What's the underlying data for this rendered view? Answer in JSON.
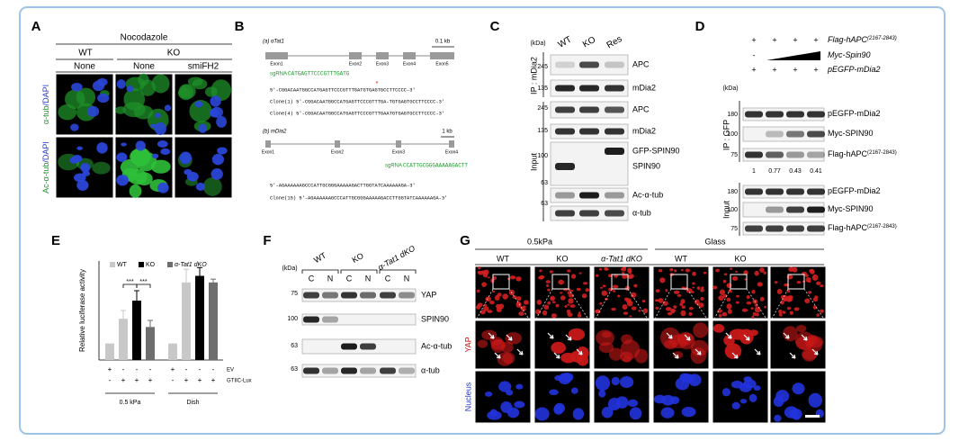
{
  "figure": {
    "A": {
      "letter": "A",
      "treatment": "Nocodazole",
      "genotypes": [
        "WT",
        "KO"
      ],
      "conditions": [
        "None",
        "None",
        "smiFH2"
      ],
      "rows": [
        [
          "α-tub",
          "/DAPI"
        ],
        [
          "Ac-α-tub",
          "/DAPI"
        ]
      ]
    },
    "B": {
      "letter": "B",
      "gene_a": "(a) αTat1",
      "exons_a": [
        "Exon1",
        "Exon2",
        "Exon3",
        "Exon4",
        "Exon5"
      ],
      "scale_a": "0.1 kb",
      "sgrna_a": "sgRNA",
      "guide_a": "CATGAGTTCCCGTTTGATG",
      "seqs_a": [
        "5'-CGGACAATGGCCATGAGTTCCCGTTTGATGTGAGTGCCTTCCCC-3'",
        "Clone(1) 5'-CGGACAATGGCCATGAGTTCCCGTTTGA-TGTGAGTGCCTTCCCC-3'",
        "Clone(4) 5'-CGGACAATGGCCATGAGTTCCCGTTTGAATGTGAGTGCCTTCCCC-3'"
      ],
      "gene_b": "(b) mDia2",
      "exons_b": [
        "Exon1",
        "Exon2",
        "Exon3",
        "Exon4"
      ],
      "scale_b": "1 kb",
      "sgrna_b": "sgRNA",
      "guide_b": "CCATTGCGGGAAAAAGACTT",
      "seqs_b": [
        "5'-AGAAAAAAGCCCATTGCGGGAAAAAGACTTGGTATCAAAAAAGA-3'",
        "Clone(15) 5'-AGAAAAAAGCCCATTGCGGGAAAAAGACCTTGGTATCAAAAAAGA-3'"
      ]
    },
    "C": {
      "letter": "C",
      "kda": "(kDa)",
      "lanes": [
        "WT",
        "KO",
        "Res"
      ],
      "ip": "IP : mDia2",
      "input": "Input",
      "markers": [
        245,
        135,
        245,
        135,
        100,
        63,
        63
      ],
      "bands": [
        "APC",
        "mDia2",
        "APC",
        "mDia2",
        "GFP-SPIN90",
        "SPIN90",
        "Ac-α-tub",
        "α-tub"
      ]
    },
    "D": {
      "letter": "D",
      "kda": "(kDa)",
      "rows": [
        {
          "label": "Flag-hAPC",
          "sup": "(2167-2843)",
          "signs": [
            "+",
            "+",
            "+",
            "+"
          ]
        },
        {
          "label": "Myc-Spin90",
          "signs": [
            "-"
          ]
        },
        {
          "label": "pEGFP-mDia2",
          "signs": [
            "+",
            "+",
            "+",
            "+"
          ]
        }
      ],
      "markers": [
        180,
        100,
        75,
        180,
        100,
        75
      ],
      "bands": [
        {
          "label": "pEGFP-mDia2"
        },
        {
          "label": "Myc-SPIN90"
        },
        {
          "label": "Flag-hAPC",
          "sup": "(2167-2843)"
        },
        {
          "label": "pEGFP-mDia2"
        },
        {
          "label": "Myc-SPIN90"
        },
        {
          "label": "Flag-hAPC",
          "sup": "(2167-2843)"
        }
      ],
      "quant": [
        1,
        0.77,
        0.43,
        0.41
      ],
      "ip": "IP : GFP",
      "input": "Input"
    },
    "E": {
      "letter": "E"
    },
    "F": {
      "letter": "F",
      "kda": "(kDa)",
      "lanes": [
        "WT",
        "KO",
        "α-Tat1 dKO"
      ],
      "fractions": [
        "C",
        "N",
        "C",
        "N",
        "C",
        "N"
      ],
      "markers": [
        75,
        100,
        63,
        63
      ],
      "bands": [
        "YAP",
        "SPIN90",
        "Ac-α-tub",
        "α-tub"
      ]
    },
    "G": {
      "letter": "G",
      "conditions": [
        "0.5kPa",
        "Glass"
      ],
      "lanes": [
        "WT",
        "KO",
        "α-Tat1 dKO",
        "WT",
        "KO"
      ],
      "rows": [
        "YAP",
        "Nucleus"
      ]
    }
  },
  "chart_data": {
    "type": "bar",
    "ylabel": "Relative luciferase activity",
    "groups": [
      "0.5 kPa",
      "Dish"
    ],
    "ylim": [
      0,
      6
    ],
    "control": {
      "color": "#c8c8c8",
      "values": [
        1,
        1
      ]
    },
    "series": [
      {
        "name": "WT",
        "color": "#c8c8c8",
        "values": [
          2.5,
          4.7
        ],
        "errors": [
          0.5,
          0.8
        ]
      },
      {
        "name": "KO",
        "color": "#000000",
        "values": [
          3.6,
          5.1
        ],
        "errors": [
          0.6,
          0.5
        ]
      },
      {
        "name": "α-Tat1 dKO",
        "color": "#6e6e6e",
        "values": [
          2.0,
          4.7
        ],
        "errors": [
          0.4,
          0.2
        ]
      }
    ],
    "rows": [
      {
        "label": "EV",
        "signs": [
          "+",
          "-",
          "-",
          "-",
          "+",
          "-",
          "-",
          "-"
        ]
      },
      {
        "label": "GTIIC-Lux",
        "signs": [
          "-",
          "+",
          "+",
          "+",
          "-",
          "+",
          "+",
          "+"
        ]
      }
    ],
    "significance": [
      "***",
      "***"
    ]
  }
}
